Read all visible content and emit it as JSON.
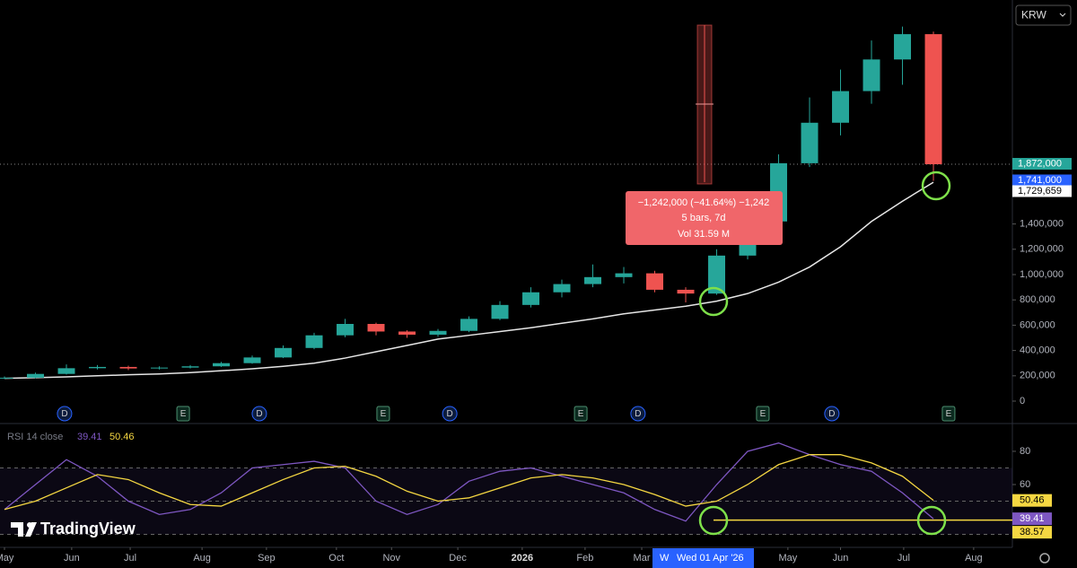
{
  "toolbar": {
    "currency": "KRW"
  },
  "brand": "TradingView",
  "crosshair": {
    "mode": "W",
    "date": "Wed 01 Apr '26"
  },
  "measure": {
    "change": "−1,242,000 (−41.64%) −1,242",
    "span": "5 bars, 7d",
    "volume": "Vol 31.59 M"
  },
  "chart_data": [
    {
      "type": "candlestick",
      "x": [
        0,
        1,
        2,
        3,
        4,
        5,
        6,
        7,
        8,
        9,
        10,
        11,
        12,
        13,
        14,
        15,
        16,
        17,
        18,
        19,
        20,
        21,
        22,
        23,
        24,
        25,
        26,
        27,
        28,
        29,
        30
      ],
      "open": [
        180000,
        185000,
        215000,
        260000,
        270000,
        258000,
        265000,
        275000,
        300000,
        345000,
        420000,
        520000,
        610000,
        550000,
        525000,
        555000,
        650000,
        760000,
        860000,
        925000,
        980000,
        1010000,
        880000,
        850000,
        1150000,
        1420000,
        1880000,
        2200000,
        2450000,
        2700000,
        2900000
      ],
      "high": [
        195000,
        225000,
        290000,
        285000,
        280000,
        275000,
        285000,
        310000,
        360000,
        440000,
        540000,
        650000,
        620000,
        560000,
        570000,
        670000,
        790000,
        900000,
        960000,
        1080000,
        1060000,
        1030000,
        900000,
        1200000,
        1480000,
        1950000,
        2400000,
        2620000,
        2850000,
        2960000,
        2920000
      ],
      "low": [
        175000,
        180000,
        210000,
        250000,
        245000,
        250000,
        258000,
        270000,
        295000,
        340000,
        410000,
        505000,
        520000,
        500000,
        510000,
        545000,
        640000,
        740000,
        820000,
        900000,
        930000,
        860000,
        780000,
        840000,
        1120000,
        1400000,
        1850000,
        2100000,
        2350000,
        2500000,
        1741000
      ],
      "close": [
        185000,
        215000,
        260000,
        270000,
        258000,
        265000,
        275000,
        300000,
        345000,
        420000,
        520000,
        610000,
        550000,
        525000,
        555000,
        650000,
        760000,
        860000,
        925000,
        980000,
        1010000,
        880000,
        850000,
        1150000,
        1420000,
        1880000,
        2200000,
        2450000,
        2700000,
        2900000,
        1872000
      ],
      "up_color": "#26a69a",
      "down_color": "#ef5350",
      "ma": {
        "color": "#e6e6e6",
        "values": [
          180000,
          185000,
          192000,
          200000,
          208000,
          215000,
          225000,
          240000,
          255000,
          275000,
          300000,
          340000,
          390000,
          440000,
          490000,
          520000,
          550000,
          580000,
          615000,
          650000,
          690000,
          720000,
          750000,
          790000,
          850000,
          940000,
          1060000,
          1220000,
          1420000,
          1580000,
          1729659
        ]
      },
      "xlim": [
        -0.145,
        32.55
      ],
      "xticks": [
        {
          "value": 0,
          "label": "May"
        },
        {
          "value": 2.17,
          "label": "Jun"
        },
        {
          "value": 4.06,
          "label": "Jul"
        },
        {
          "value": 6.38,
          "label": "Aug"
        },
        {
          "value": 8.46,
          "label": "Sep"
        },
        {
          "value": 10.72,
          "label": "Oct"
        },
        {
          "value": 12.5,
          "label": "Nov"
        },
        {
          "value": 14.64,
          "label": "Dec"
        },
        {
          "value": 16.72,
          "label": "2026"
        },
        {
          "value": 18.75,
          "label": "Feb"
        },
        {
          "value": 20.58,
          "label": "Mar"
        },
        {
          "value": 25.3,
          "label": "May"
        },
        {
          "value": 27,
          "label": "Jun"
        },
        {
          "value": 29.04,
          "label": "Jul"
        },
        {
          "value": 31.3,
          "label": "Aug"
        }
      ],
      "ylim": [
        -163000,
        3170000
      ],
      "yticks": [
        {
          "value": 0,
          "label": "0"
        },
        {
          "value": 200000,
          "label": "200,000"
        },
        {
          "value": 400000,
          "label": "400,000"
        },
        {
          "value": 600000,
          "label": "600,000"
        },
        {
          "value": 800000,
          "label": "800,000"
        },
        {
          "value": 1000000,
          "label": "1,000,000"
        },
        {
          "value": 1200000,
          "label": "1,200,000"
        },
        {
          "value": 1400000,
          "label": "1,400,000"
        }
      ],
      "price_labels": [
        {
          "value": 1872000,
          "label": "1,872,000",
          "color": "#26a69a"
        },
        {
          "value": 1741000,
          "label": "1,741,000",
          "color": "#2962ff"
        },
        {
          "value": 1729659,
          "label": "1,729,659",
          "color": "#ffffff"
        }
      ],
      "events": [
        {
          "x": 1.94,
          "label": "D"
        },
        {
          "x": 5.77,
          "label": "E"
        },
        {
          "x": 8.23,
          "label": "D"
        },
        {
          "x": 12.23,
          "label": "E"
        },
        {
          "x": 14.38,
          "label": "D"
        },
        {
          "x": 18.61,
          "label": "E"
        },
        {
          "x": 20.46,
          "label": "D"
        },
        {
          "x": 24.49,
          "label": "E"
        },
        {
          "x": 26.72,
          "label": "D"
        },
        {
          "x": 30.49,
          "label": "E"
        }
      ]
    },
    {
      "type": "line",
      "title": "RSI 14 close",
      "x": [
        0,
        1,
        2,
        3,
        4,
        5,
        6,
        7,
        8,
        9,
        10,
        11,
        12,
        13,
        14,
        15,
        16,
        17,
        18,
        19,
        20,
        21,
        22,
        23,
        24,
        25,
        26,
        27,
        28,
        29,
        30
      ],
      "series": [
        {
          "color": "#7e57c2",
          "values": [
            45,
            60,
            75,
            65,
            50,
            42,
            45,
            55,
            70,
            72,
            74,
            70,
            50,
            42,
            48,
            62,
            68,
            70,
            65,
            60,
            55,
            45,
            38,
            60,
            80,
            85,
            78,
            72,
            68,
            55,
            39.41
          ]
        },
        {
          "color": "#f5d742",
          "values": [
            45,
            50,
            58,
            66,
            63,
            55,
            48,
            47,
            55,
            63,
            70,
            71,
            65,
            56,
            50,
            52,
            58,
            64,
            66,
            64,
            60,
            54,
            47,
            50,
            60,
            72,
            78,
            78,
            73,
            65,
            50.46
          ]
        }
      ],
      "hline": {
        "value": 38.57,
        "color": "#f5d742"
      },
      "levels": [
        70,
        50,
        30
      ],
      "ylim": [
        22.2,
        95.1
      ],
      "yticks": [
        60,
        80
      ]
    }
  ]
}
